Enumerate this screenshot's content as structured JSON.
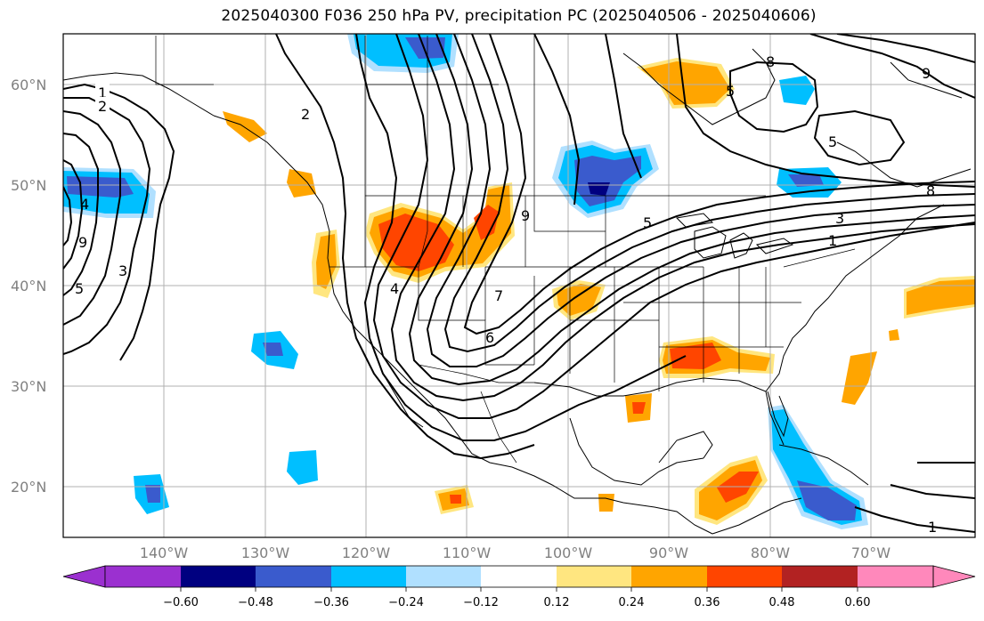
{
  "title": "2025040300 F036 250 hPa PV, precipitation PC (2025040506 - 2025040606)",
  "lat_labels": [
    "60°N",
    "50°N",
    "40°N",
    "30°N",
    "20°N"
  ],
  "lon_labels": [
    "140°W",
    "130°W",
    "120°W",
    "110°W",
    "100°W",
    "90°W",
    "80°W",
    "70°W"
  ],
  "colorbar": {
    "tick_labels": [
      "−0.60",
      "−0.48",
      "−0.36",
      "−0.24",
      "−0.12",
      "0.12",
      "0.24",
      "0.36",
      "0.48",
      "0.60"
    ],
    "colors": [
      "#9b30d0",
      "#000080",
      "#3a5bcd",
      "#00bfff",
      "#b0e0ff",
      "#ffffff",
      "#ffe680",
      "#ffa500",
      "#ff4500",
      "#b22222",
      "#ff88bb"
    ]
  },
  "contour_labels": [
    "1",
    "2",
    "2",
    "4",
    "9",
    "3",
    "5",
    "5",
    "8",
    "4",
    "7",
    "6",
    "9",
    "5",
    "3",
    "1",
    "8",
    "9",
    "5",
    "1"
  ],
  "colors": {
    "gridline": "#b0b0b0",
    "contour": "#000000",
    "neg_light": "#b0e0ff",
    "neg_mid": "#00bfff",
    "neg_strong": "#3a5bcd",
    "neg_max": "#000080",
    "pos_light": "#ffe680",
    "pos_mid": "#ffa500",
    "pos_strong": "#ff4500",
    "pos_max": "#b22222"
  }
}
